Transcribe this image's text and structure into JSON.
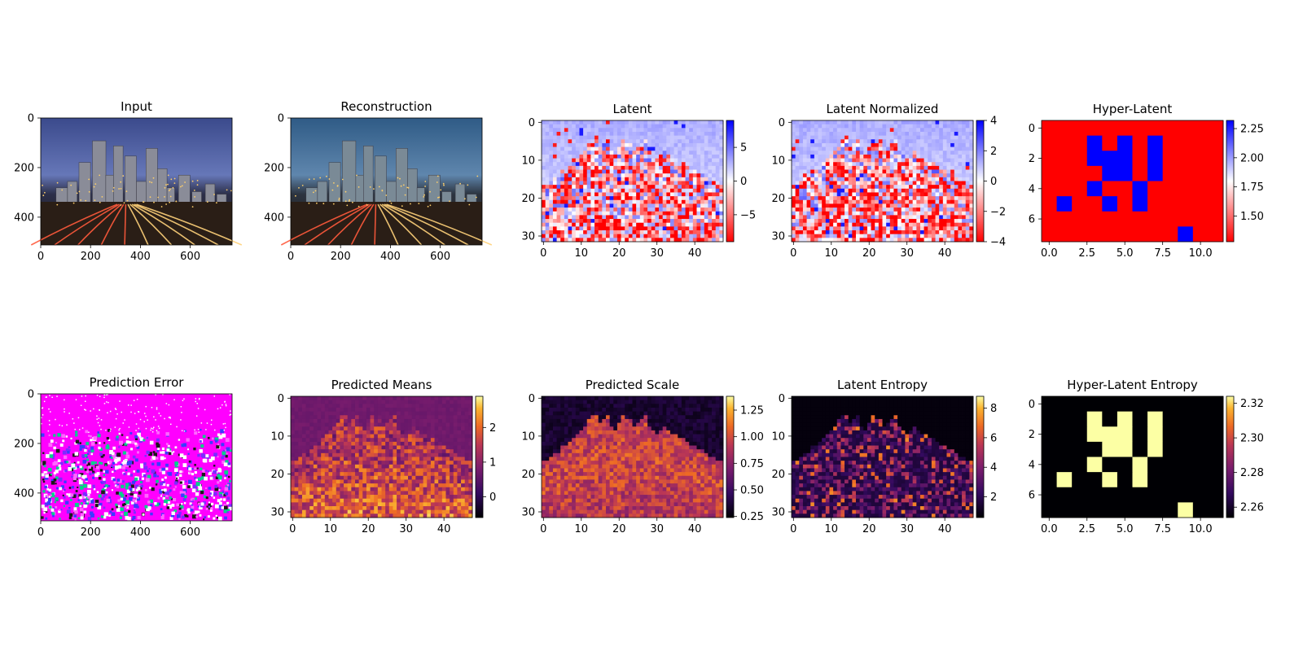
{
  "figure": {
    "background": "#ffffff"
  },
  "chart_data": [
    {
      "id": "input",
      "type": "image",
      "title": "Input",
      "content": "photo of a city skyline at dusk with light-trail highway",
      "xlim": [
        0,
        768
      ],
      "ylim": [
        512,
        0
      ],
      "xticks": [
        0,
        200,
        400,
        600
      ],
      "yticks": [
        0,
        200,
        400
      ],
      "colorbar": null
    },
    {
      "id": "reconstruction",
      "type": "image",
      "title": "Reconstruction",
      "content": "reconstructed city skyline photo (slightly blocky)",
      "xlim": [
        0,
        768
      ],
      "ylim": [
        512,
        0
      ],
      "xticks": [
        0,
        200,
        400,
        600
      ],
      "yticks": [
        0,
        200,
        400
      ],
      "colorbar": null
    },
    {
      "id": "latent",
      "type": "heatmap",
      "title": "Latent",
      "grid": [
        32,
        48
      ],
      "colormap": "bwr_r",
      "xlim": [
        -0.5,
        47.5
      ],
      "ylim": [
        31.5,
        -0.5
      ],
      "xticks": [
        0,
        10,
        20,
        30,
        40
      ],
      "yticks": [
        0,
        10,
        20,
        30
      ],
      "colorbar": {
        "range": [
          -9,
          9
        ],
        "ticks": [
          5,
          0,
          -5
        ]
      }
    },
    {
      "id": "latent-normalized",
      "type": "heatmap",
      "title": "Latent Normalized",
      "grid": [
        32,
        48
      ],
      "colormap": "bwr_r",
      "xlim": [
        -0.5,
        47.5
      ],
      "ylim": [
        31.5,
        -0.5
      ],
      "xticks": [
        0,
        10,
        20,
        30,
        40
      ],
      "yticks": [
        0,
        10,
        20,
        30
      ],
      "colorbar": {
        "range": [
          -4,
          4
        ],
        "ticks": [
          4,
          2,
          0,
          -2,
          -4
        ]
      }
    },
    {
      "id": "hyper-latent",
      "type": "heatmap",
      "title": "Hyper-Latent",
      "grid": [
        8,
        12
      ],
      "colormap": "bwr_r",
      "xlim": [
        -0.5,
        11.5
      ],
      "ylim": [
        7.5,
        -0.5
      ],
      "xticks": [
        0.0,
        2.5,
        5.0,
        7.5,
        10.0
      ],
      "yticks": [
        0,
        2,
        4,
        6
      ],
      "colorbar": {
        "range": [
          1.28,
          2.32
        ],
        "ticks": [
          2.25,
          2.0,
          1.75,
          1.5
        ]
      },
      "high_cells": [
        [
          1,
          3
        ],
        [
          1,
          5
        ],
        [
          1,
          7
        ],
        [
          2,
          3
        ],
        [
          2,
          4
        ],
        [
          2,
          5
        ],
        [
          2,
          7
        ],
        [
          3,
          4
        ],
        [
          3,
          5
        ],
        [
          3,
          7
        ],
        [
          4,
          3
        ],
        [
          4,
          6
        ],
        [
          5,
          1
        ],
        [
          5,
          4
        ],
        [
          5,
          6
        ],
        [
          7,
          9
        ]
      ],
      "high_value": 2.32,
      "low_value": 1.28
    },
    {
      "id": "prediction-error",
      "type": "image",
      "title": "Prediction Error",
      "content": "error map, mostly magenta with noisy edges",
      "xlim": [
        0,
        768
      ],
      "ylim": [
        512,
        0
      ],
      "xticks": [
        0,
        200,
        400,
        600
      ],
      "yticks": [
        0,
        200,
        400
      ],
      "colorbar": null
    },
    {
      "id": "predicted-means",
      "type": "heatmap",
      "title": "Predicted Means",
      "grid": [
        32,
        48
      ],
      "colormap": "inferno",
      "xlim": [
        -0.5,
        47.5
      ],
      "ylim": [
        31.5,
        -0.5
      ],
      "xticks": [
        0,
        10,
        20,
        30,
        40
      ],
      "yticks": [
        0,
        10,
        20,
        30
      ],
      "colorbar": {
        "range": [
          -0.6,
          2.9
        ],
        "ticks": [
          2,
          1,
          0
        ]
      }
    },
    {
      "id": "predicted-scale",
      "type": "heatmap",
      "title": "Predicted Scale",
      "grid": [
        32,
        48
      ],
      "colormap": "inferno",
      "xlim": [
        -0.5,
        47.5
      ],
      "ylim": [
        31.5,
        -0.5
      ],
      "xticks": [
        0,
        10,
        20,
        30,
        40
      ],
      "yticks": [
        0,
        10,
        20,
        30
      ],
      "colorbar": {
        "range": [
          0.24,
          1.38
        ],
        "ticks": [
          1.25,
          1.0,
          0.75,
          0.5,
          0.25
        ]
      }
    },
    {
      "id": "latent-entropy",
      "type": "heatmap",
      "title": "Latent Entropy",
      "grid": [
        32,
        48
      ],
      "colormap": "inferno",
      "xlim": [
        -0.5,
        47.5
      ],
      "ylim": [
        31.5,
        -0.5
      ],
      "xticks": [
        0,
        10,
        20,
        30,
        40
      ],
      "yticks": [
        0,
        10,
        20,
        30
      ],
      "colorbar": {
        "range": [
          0.6,
          8.8
        ],
        "ticks": [
          8,
          6,
          4,
          2
        ]
      }
    },
    {
      "id": "hyper-latent-entropy",
      "type": "heatmap",
      "title": "Hyper-Latent Entropy",
      "grid": [
        8,
        12
      ],
      "colormap": "inferno",
      "xlim": [
        -0.5,
        11.5
      ],
      "ylim": [
        7.5,
        -0.5
      ],
      "xticks": [
        0.0,
        2.5,
        5.0,
        7.5,
        10.0
      ],
      "yticks": [
        0,
        2,
        4,
        6
      ],
      "colorbar": {
        "range": [
          2.254,
          2.324
        ],
        "ticks": [
          2.32,
          2.3,
          2.28,
          2.26
        ]
      },
      "high_cells": [
        [
          1,
          3
        ],
        [
          1,
          5
        ],
        [
          1,
          7
        ],
        [
          2,
          3
        ],
        [
          2,
          4
        ],
        [
          2,
          5
        ],
        [
          2,
          7
        ],
        [
          3,
          4
        ],
        [
          3,
          5
        ],
        [
          3,
          7
        ],
        [
          4,
          3
        ],
        [
          4,
          6
        ],
        [
          5,
          1
        ],
        [
          5,
          4
        ],
        [
          5,
          6
        ],
        [
          7,
          9
        ]
      ],
      "high_value": 2.324,
      "low_value": 2.254
    }
  ]
}
